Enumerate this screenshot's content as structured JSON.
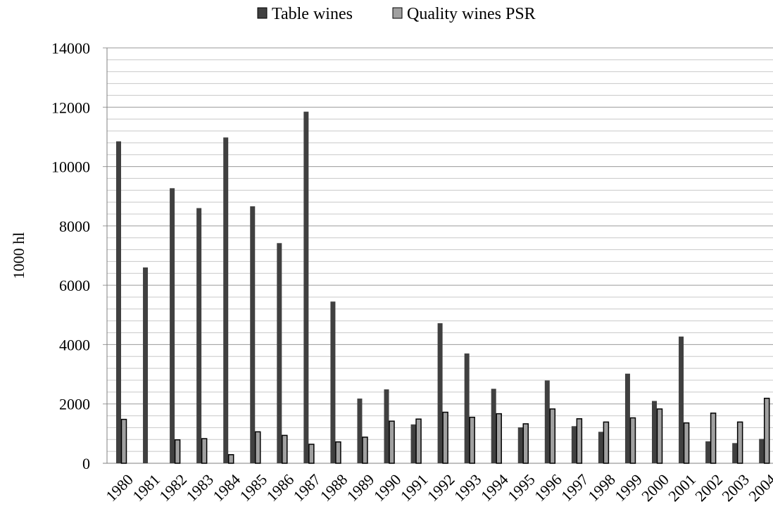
{
  "chart_data": {
    "type": "bar",
    "title": "",
    "xlabel": "",
    "ylabel": "1000 hl",
    "ylim": [
      0,
      14000
    ],
    "yticks": [
      0,
      2000,
      4000,
      6000,
      8000,
      10000,
      12000,
      14000
    ],
    "minor_grid_step": 400,
    "grid": true,
    "legend_position": "top-center",
    "categories": [
      "1980",
      "1981",
      "1982",
      "1983",
      "1984",
      "1985",
      "1986",
      "1987",
      "1988",
      "1989",
      "1990",
      "1991",
      "1992",
      "1993",
      "1994",
      "1995",
      "1996",
      "1997",
      "1998",
      "1999",
      "2000",
      "2001",
      "2002",
      "2003",
      "2004"
    ],
    "series": [
      {
        "name": "Table wines",
        "color": "#404040",
        "values": [
          10850,
          6600,
          9270,
          8600,
          10980,
          8660,
          7420,
          11850,
          5450,
          2180,
          2490,
          1310,
          4720,
          3700,
          2510,
          1210,
          2790,
          1250,
          1060,
          3020,
          2100,
          4270,
          740,
          680,
          820
        ]
      },
      {
        "name": "Quality wines PSR",
        "color": "#a0a0a0",
        "values": [
          1480,
          0,
          790,
          830,
          290,
          1060,
          940,
          640,
          720,
          880,
          1420,
          1490,
          1720,
          1550,
          1670,
          1330,
          1830,
          1500,
          1390,
          1530,
          1830,
          1360,
          1690,
          1390,
          2190
        ]
      }
    ]
  }
}
